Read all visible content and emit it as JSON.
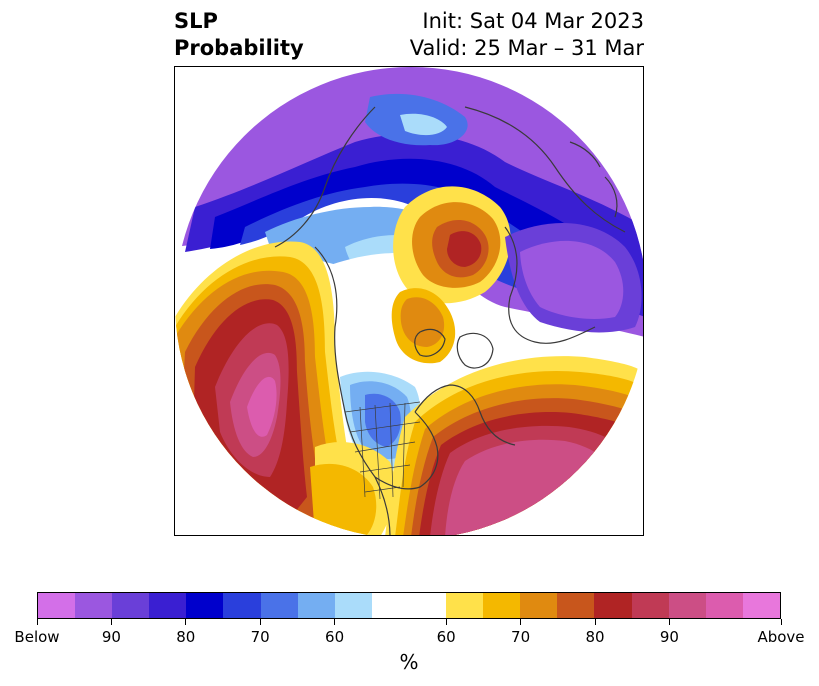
{
  "title": {
    "left_line1": "SLP",
    "left_line2": "Probability",
    "right_line1": "Init: Sat 04 Mar 2023",
    "right_line2": "Valid: 25 Mar – 31 Mar"
  },
  "colorbar": {
    "unit": "%",
    "colors": [
      "#d36fe8",
      "#9b57e0",
      "#6a3fd8",
      "#3a1fd2",
      "#0000cc",
      "#2a3fdc",
      "#4a72e8",
      "#74aef2",
      "#aadcfa",
      "#ffffff",
      "#ffffff",
      "#ffe14a",
      "#f4b800",
      "#e08a10",
      "#c8561c",
      "#b02424",
      "#c03a55",
      "#cc4e85",
      "#dc5cae",
      "#e877dc"
    ],
    "tick_labels": [
      "Below",
      "90",
      "80",
      "70",
      "60",
      "60",
      "70",
      "80",
      "90",
      "Above"
    ]
  },
  "map": {
    "description_colors": {
      "below": "#9b57e0",
      "above": "#dc5cae",
      "land_outline": "#3a3a3a"
    }
  }
}
